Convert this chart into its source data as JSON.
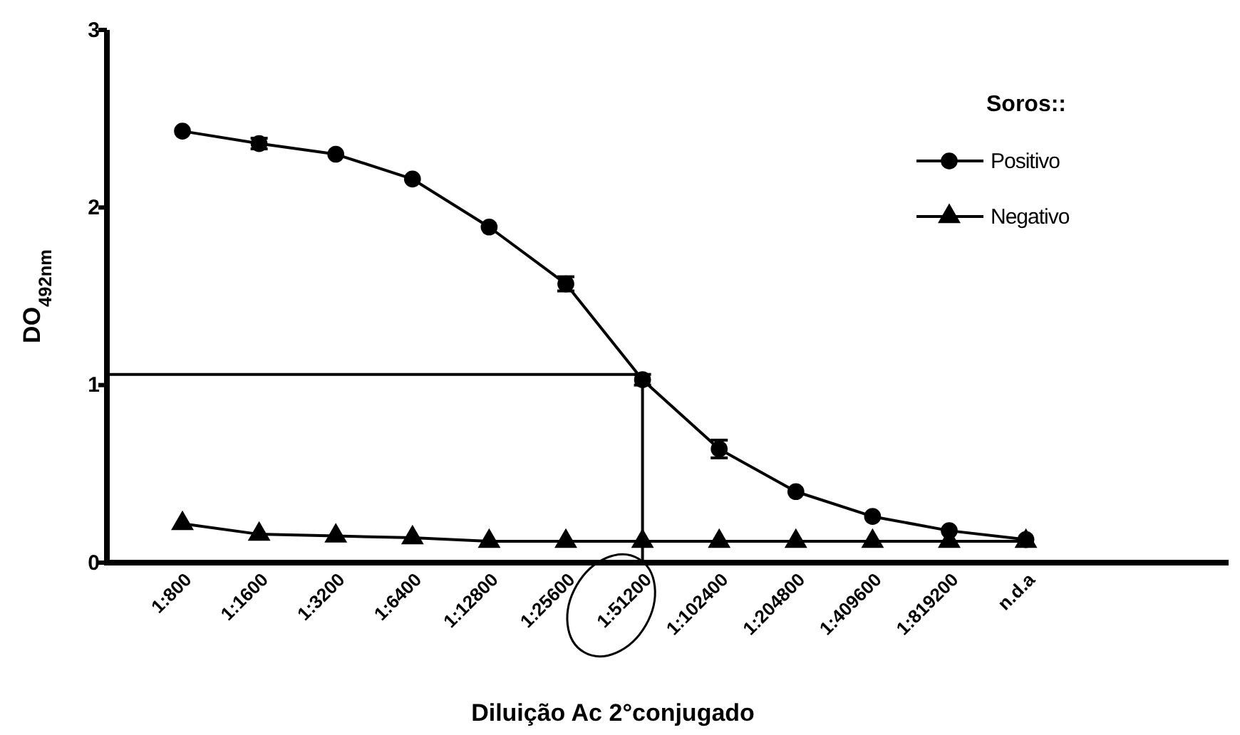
{
  "chart_data": {
    "type": "line",
    "xlabel": "Diluição Ac 2°conjugado",
    "ylabel": "DO$_{492nm}$",
    "legend_title": "Soros::",
    "legend": "top right",
    "grid": false,
    "line_style": "solid",
    "categories": [
      "1:800",
      "1:1600",
      "1:3200",
      "1:6400",
      "1:12800",
      "1:25600",
      "1:51200",
      "1:102400",
      "1:204800",
      "1:409600",
      "1:819200",
      "n.d.a"
    ],
    "ylim": [
      0,
      3
    ],
    "yticks": [
      0,
      1,
      2,
      3
    ],
    "series": [
      {
        "name": "Positivo",
        "color": "#000000",
        "marker": "circle",
        "values": [
          2.43,
          2.36,
          2.3,
          2.16,
          1.89,
          1.57,
          1.03,
          0.64,
          0.4,
          0.26,
          0.18,
          0.13
        ],
        "errors": [
          null,
          0.03,
          null,
          null,
          null,
          0.04,
          0.03,
          0.05,
          null,
          null,
          null,
          null
        ]
      },
      {
        "name": "Negativo",
        "color": "#000000",
        "marker": "triangle",
        "values": [
          0.22,
          0.16,
          0.15,
          0.14,
          0.12,
          0.12,
          0.12,
          0.12,
          0.12,
          0.12,
          0.12,
          0.12
        ]
      }
    ],
    "ref_lines": [
      {
        "axis": "y",
        "value": 1.06,
        "color": "#000000"
      },
      {
        "axis": "x",
        "value": "1:51200",
        "color": "#000000"
      }
    ]
  }
}
